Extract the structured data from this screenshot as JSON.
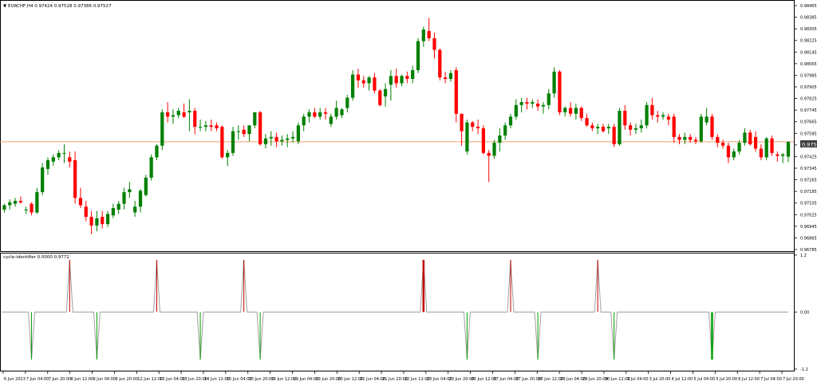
{
  "main_title": "▼ EURCHF,H4  0.97424 0.97528 0.97386 0.97527",
  "price_badge": "0.97527",
  "indicator_title": "cycle-identifier 0.0000 0.9772",
  "colors": {
    "bull": "#008000",
    "bear": "#ff0000",
    "hline": "#f2a06b",
    "grid_text": "#000000",
    "peak": "#c00000",
    "trough": "#00a000",
    "cycle_line": "#a0a0a0",
    "badge": "#404040"
  },
  "chart_data": [
    {
      "type": "candlestick",
      "title": "EURCHF,H4",
      "ylim": [
        0.96785,
        0.98465
      ],
      "yticks": [
        "0.98465",
        "0.98385",
        "0.98305",
        "0.98225",
        "0.98145",
        "0.98065",
        "0.97985",
        "0.97905",
        "0.97825",
        "0.97745",
        "0.97665",
        "0.97585",
        "0.97505",
        "0.97425",
        "0.97345",
        "0.97265",
        "0.97185",
        "0.97105",
        "0.97025",
        "0.96945",
        "0.96865",
        "0.96785"
      ],
      "current_price": 0.97527,
      "candles": [
        [
          0.9706,
          0.971,
          0.9704,
          0.9709
        ],
        [
          0.9709,
          0.9713,
          0.9706,
          0.9711
        ],
        [
          0.971,
          0.9714,
          0.9708,
          0.9712
        ],
        [
          0.9712,
          0.9715,
          0.971,
          0.9711
        ],
        [
          0.9706,
          0.9708,
          0.9703,
          0.9706
        ],
        [
          0.971,
          0.9711,
          0.9702,
          0.9704
        ],
        [
          0.9704,
          0.9721,
          0.9703,
          0.9718
        ],
        [
          0.9718,
          0.9738,
          0.9716,
          0.9735
        ],
        [
          0.9734,
          0.9742,
          0.973,
          0.974
        ],
        [
          0.9739,
          0.9744,
          0.9736,
          0.9742
        ],
        [
          0.9742,
          0.9747,
          0.974,
          0.9745
        ],
        [
          0.9745,
          0.9751,
          0.9738,
          0.9745
        ],
        [
          0.9742,
          0.9746,
          0.9735,
          0.9739
        ],
        [
          0.974,
          0.9746,
          0.971,
          0.9714
        ],
        [
          0.9714,
          0.9721,
          0.9707,
          0.9709
        ],
        [
          0.9708,
          0.9712,
          0.9698,
          0.9701
        ],
        [
          0.9701,
          0.9705,
          0.9689,
          0.9695
        ],
        [
          0.9695,
          0.9705,
          0.9691,
          0.97
        ],
        [
          0.9701,
          0.9705,
          0.9693,
          0.9696
        ],
        [
          0.9696,
          0.9705,
          0.9694,
          0.9703
        ],
        [
          0.9702,
          0.971,
          0.97,
          0.9707
        ],
        [
          0.9706,
          0.9712,
          0.9703,
          0.971
        ],
        [
          0.971,
          0.9721,
          0.9706,
          0.9718
        ],
        [
          0.9718,
          0.9725,
          0.9714,
          0.972
        ],
        [
          0.9704,
          0.9712,
          0.9701,
          0.9708
        ],
        [
          0.9708,
          0.972,
          0.9704,
          0.9719
        ],
        [
          0.9716,
          0.973,
          0.9715,
          0.9728
        ],
        [
          0.9728,
          0.9744,
          0.9726,
          0.9742
        ],
        [
          0.9742,
          0.9751,
          0.974,
          0.975
        ],
        [
          0.975,
          0.9775,
          0.9747,
          0.9773
        ],
        [
          0.9773,
          0.978,
          0.9766,
          0.977
        ],
        [
          0.977,
          0.9775,
          0.9765,
          0.9771
        ],
        [
          0.9771,
          0.9776,
          0.9769,
          0.9774
        ],
        [
          0.9773,
          0.9779,
          0.9769,
          0.977
        ],
        [
          0.9773,
          0.9782,
          0.976,
          0.9774
        ],
        [
          0.9774,
          0.9776,
          0.9758,
          0.9763
        ],
        [
          0.9763,
          0.9768,
          0.976,
          0.9763
        ],
        [
          0.9763,
          0.9767,
          0.976,
          0.9764
        ],
        [
          0.9764,
          0.9768,
          0.976,
          0.9763
        ],
        [
          0.9764,
          0.9766,
          0.976,
          0.9762
        ],
        [
          0.9763,
          0.9764,
          0.9741,
          0.9742
        ],
        [
          0.9742,
          0.9747,
          0.9736,
          0.9745
        ],
        [
          0.9745,
          0.9763,
          0.9743,
          0.976
        ],
        [
          0.976,
          0.9764,
          0.9754,
          0.976
        ],
        [
          0.9761,
          0.9764,
          0.9756,
          0.9758
        ],
        [
          0.9758,
          0.9764,
          0.9753,
          0.9764
        ],
        [
          0.9764,
          0.9773,
          0.9762,
          0.9773
        ],
        [
          0.9773,
          0.9774,
          0.975,
          0.9751
        ],
        [
          0.9751,
          0.9758,
          0.9748,
          0.9755
        ],
        [
          0.9755,
          0.976,
          0.975,
          0.9756
        ],
        [
          0.9756,
          0.9759,
          0.9749,
          0.9753
        ],
        [
          0.9753,
          0.9757,
          0.975,
          0.9754
        ],
        [
          0.9754,
          0.9758,
          0.9749,
          0.9755
        ],
        [
          0.9755,
          0.976,
          0.9752,
          0.9756
        ],
        [
          0.9753,
          0.9766,
          0.9751,
          0.9764
        ],
        [
          0.9764,
          0.9772,
          0.976,
          0.977
        ],
        [
          0.977,
          0.9775,
          0.9766,
          0.9773
        ],
        [
          0.9773,
          0.9776,
          0.9769,
          0.977
        ],
        [
          0.977,
          0.9776,
          0.9768,
          0.9773
        ],
        [
          0.9773,
          0.9776,
          0.9768,
          0.9772
        ],
        [
          0.9765,
          0.9772,
          0.9763,
          0.977
        ],
        [
          0.977,
          0.9781,
          0.9768,
          0.9776
        ],
        [
          0.9771,
          0.9776,
          0.9769,
          0.9775
        ],
        [
          0.9776,
          0.9785,
          0.9773,
          0.9783
        ],
        [
          0.9783,
          0.9802,
          0.9781,
          0.9799
        ],
        [
          0.9799,
          0.9803,
          0.979,
          0.9795
        ],
        [
          0.9795,
          0.9798,
          0.979,
          0.9793
        ],
        [
          0.9793,
          0.9798,
          0.9788,
          0.9797
        ],
        [
          0.9797,
          0.98,
          0.9786,
          0.9788
        ],
        [
          0.9788,
          0.9789,
          0.9777,
          0.9778
        ],
        [
          0.9784,
          0.9793,
          0.9777,
          0.9789
        ],
        [
          0.9792,
          0.9802,
          0.9781,
          0.9798
        ],
        [
          0.9798,
          0.9803,
          0.979,
          0.9793
        ],
        [
          0.9793,
          0.9799,
          0.9791,
          0.9798
        ],
        [
          0.9798,
          0.9801,
          0.9793,
          0.9796
        ],
        [
          0.9796,
          0.9805,
          0.9793,
          0.9802
        ],
        [
          0.9802,
          0.9824,
          0.98,
          0.9822
        ],
        [
          0.9822,
          0.9832,
          0.9818,
          0.983
        ],
        [
          0.9829,
          0.9838,
          0.9822,
          0.9824
        ],
        [
          0.9824,
          0.9828,
          0.981,
          0.9816
        ],
        [
          0.9816,
          0.9817,
          0.9795,
          0.9797
        ],
        [
          0.9797,
          0.9801,
          0.9793,
          0.9796
        ],
        [
          0.9796,
          0.9802,
          0.9794,
          0.98
        ],
        [
          0.9802,
          0.9804,
          0.9766,
          0.9772
        ],
        [
          0.9772,
          0.9772,
          0.975,
          0.976
        ],
        [
          0.9746,
          0.9768,
          0.9744,
          0.9766
        ],
        [
          0.9766,
          0.9767,
          0.976,
          0.9763
        ],
        [
          0.9763,
          0.9768,
          0.9758,
          0.9762
        ],
        [
          0.9762,
          0.9764,
          0.9744,
          0.9745
        ],
        [
          0.9745,
          0.9747,
          0.9725,
          0.9743
        ],
        [
          0.9743,
          0.9754,
          0.9741,
          0.9752
        ],
        [
          0.9752,
          0.9762,
          0.9746,
          0.9757
        ],
        [
          0.9757,
          0.9766,
          0.9754,
          0.9764
        ],
        [
          0.9764,
          0.9772,
          0.9762,
          0.977
        ],
        [
          0.977,
          0.9782,
          0.9768,
          0.9778
        ],
        [
          0.9778,
          0.9783,
          0.9773,
          0.978
        ],
        [
          0.978,
          0.9783,
          0.9775,
          0.9779
        ],
        [
          0.9779,
          0.9782,
          0.9776,
          0.978
        ],
        [
          0.9779,
          0.9782,
          0.9774,
          0.9777
        ],
        [
          0.9777,
          0.978,
          0.9772,
          0.9778
        ],
        [
          0.9778,
          0.9789,
          0.9775,
          0.9786
        ],
        [
          0.9786,
          0.9804,
          0.9783,
          0.9801
        ],
        [
          0.9801,
          0.9802,
          0.9771,
          0.9773
        ],
        [
          0.9773,
          0.9777,
          0.977,
          0.9776
        ],
        [
          0.9776,
          0.978,
          0.977,
          0.9772
        ],
        [
          0.9772,
          0.9779,
          0.9768,
          0.9776
        ],
        [
          0.9776,
          0.9777,
          0.9767,
          0.9769
        ],
        [
          0.9769,
          0.9772,
          0.9763,
          0.9764
        ],
        [
          0.9764,
          0.9766,
          0.976,
          0.9762
        ],
        [
          0.9762,
          0.9765,
          0.9758,
          0.9763
        ],
        [
          0.9763,
          0.9765,
          0.9759,
          0.976
        ],
        [
          0.9762,
          0.9765,
          0.9758,
          0.9763
        ],
        [
          0.9763,
          0.9765,
          0.9749,
          0.9751
        ],
        [
          0.9751,
          0.9776,
          0.975,
          0.9774
        ],
        [
          0.9774,
          0.9778,
          0.9761,
          0.9764
        ],
        [
          0.9764,
          0.9766,
          0.9757,
          0.9761
        ],
        [
          0.9761,
          0.9765,
          0.9758,
          0.9762
        ],
        [
          0.9762,
          0.9768,
          0.9759,
          0.9764
        ],
        [
          0.9764,
          0.978,
          0.9762,
          0.9778
        ],
        [
          0.9778,
          0.9783,
          0.9768,
          0.9771
        ],
        [
          0.9771,
          0.9774,
          0.9766,
          0.977
        ],
        [
          0.977,
          0.9773,
          0.9768,
          0.9771
        ],
        [
          0.977,
          0.9772,
          0.9764,
          0.9768
        ],
        [
          0.977,
          0.9772,
          0.9752,
          0.9756
        ],
        [
          0.9756,
          0.9758,
          0.9751,
          0.9754
        ],
        [
          0.9754,
          0.9759,
          0.9751,
          0.9756
        ],
        [
          0.9756,
          0.9758,
          0.9752,
          0.9754
        ],
        [
          0.9754,
          0.9756,
          0.9751,
          0.9753
        ],
        [
          0.9753,
          0.9772,
          0.9752,
          0.977
        ],
        [
          0.9766,
          0.9776,
          0.9764,
          0.977
        ],
        [
          0.977,
          0.9772,
          0.9754,
          0.9756
        ],
        [
          0.9756,
          0.9758,
          0.9749,
          0.9752
        ],
        [
          0.9752,
          0.9754,
          0.9748,
          0.975
        ],
        [
          0.975,
          0.9752,
          0.9738,
          0.9742
        ],
        [
          0.9742,
          0.9748,
          0.974,
          0.9746
        ],
        [
          0.9746,
          0.9754,
          0.9744,
          0.9752
        ],
        [
          0.9752,
          0.9762,
          0.975,
          0.9759
        ],
        [
          0.9759,
          0.9761,
          0.975,
          0.9751
        ],
        [
          0.9756,
          0.976,
          0.9746,
          0.9748
        ],
        [
          0.9748,
          0.9751,
          0.974,
          0.9742
        ],
        [
          0.9742,
          0.9756,
          0.974,
          0.9755
        ],
        [
          0.9755,
          0.9757,
          0.9743,
          0.9745
        ],
        [
          0.9744,
          0.9746,
          0.9739,
          0.9743
        ],
        [
          0.9743,
          0.9745,
          0.9738,
          0.9744
        ],
        [
          0.97424,
          0.97528,
          0.97386,
          0.97527
        ]
      ],
      "indicator": {
        "ylim": [
          -1.2,
          1.2
        ],
        "yticks": [
          "1.2",
          "0.00",
          "-1.2"
        ],
        "peaks": [
          12,
          28,
          44,
          77,
          93,
          109
        ],
        "troughs": [
          5,
          17,
          36,
          47,
          85,
          98,
          112,
          130
        ],
        "highlight_peak": 77,
        "highlight_trough": 130
      },
      "xlabels": [
        "6 Jun 2023",
        "7 Jun 04:00",
        "7 Jun 20:00",
        "8 Jun 12:00",
        "9 Jun 04:00",
        "9 Jun 20:00",
        "12 Jun 12:00",
        "13 Jun 04:00",
        "13 Jun 20:00",
        "14 Jun 12:00",
        "15 Jun 04:00",
        "15 Jun 20:00",
        "16 Jun 12:00",
        "19 Jun 04:00",
        "19 Jun 20:00",
        "20 Jun 12:00",
        "21 Jun 04:00",
        "21 Jun 20:00",
        "22 Jun 12:00",
        "23 Jun 04:00",
        "23 Jun 20:00",
        "26 Jun 12:00",
        "27 Jun 04:00",
        "27 Jun 20:00",
        "28 Jun 12:00",
        "29 Jun 04:00",
        "29 Jun 20:00",
        "30 Jun 12:00",
        "3 Jul 04:00",
        "3 Jul 20:00",
        "4 Jul 12:00",
        "5 Jul 04:00",
        "5 Jul 20:00",
        "6 Jul 12:00",
        "7 Jul 04:00",
        "7 Jul 20:00"
      ]
    }
  ]
}
